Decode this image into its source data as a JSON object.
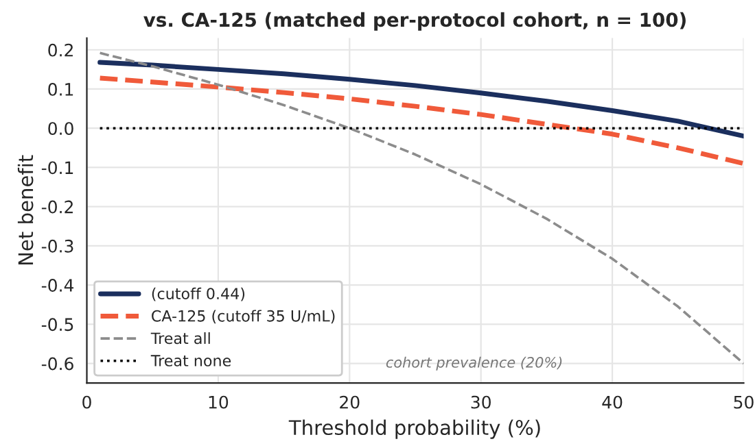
{
  "chart_data": {
    "type": "line",
    "title": "vs. CA-125 (matched per-protocol cohort, n = 100)",
    "xlabel": "Threshold probability (%)",
    "ylabel": "Net benefit",
    "xlim": [
      0,
      50
    ],
    "ylim": [
      -0.65,
      0.23
    ],
    "xticks": [
      0,
      10,
      20,
      30,
      40,
      50
    ],
    "yticks": [
      -0.6,
      -0.5,
      -0.4,
      -0.3,
      -0.2,
      -0.1,
      {
        "value": 0,
        "label": "0.0"
      },
      0.1,
      0.2
    ],
    "grid": true,
    "legend": "bottom left",
    "marker": "none",
    "annotations": [
      "cohort prevalence (20%)"
    ],
    "series": [
      {
        "name": "(cutoff 0.44)",
        "color": "#1b2f5e",
        "line_style": "solid",
        "x": [
          1,
          5,
          10,
          15,
          20,
          25,
          30,
          35,
          40,
          45,
          50
        ],
        "values": [
          0.168,
          0.161,
          0.15,
          0.139,
          0.125,
          0.109,
          0.09,
          0.069,
          0.045,
          0.018,
          -0.02
        ]
      },
      {
        "name": "CA-125 (cutoff 35 U/mL)",
        "color": "#f05a3a",
        "line_style": "dashed",
        "x": [
          1,
          5,
          10,
          15,
          20,
          25,
          30,
          35,
          40,
          45,
          50
        ],
        "values": [
          0.128,
          0.118,
          0.105,
          0.091,
          0.075,
          0.056,
          0.035,
          0.01,
          -0.015,
          -0.05,
          -0.09
        ]
      },
      {
        "name": "Treat all",
        "color": "#8c8c8c",
        "line_style": "dashed",
        "x": [
          1,
          5,
          10,
          15,
          20,
          25,
          30,
          35,
          40,
          45,
          50
        ],
        "values": [
          0.192,
          0.158,
          0.111,
          0.059,
          0.0,
          -0.067,
          -0.143,
          -0.231,
          -0.333,
          -0.455,
          -0.6
        ]
      },
      {
        "name": "Treat none",
        "color": "#000000",
        "line_style": "dotted",
        "x": [
          1,
          50
        ],
        "values": [
          0,
          0
        ]
      }
    ]
  }
}
